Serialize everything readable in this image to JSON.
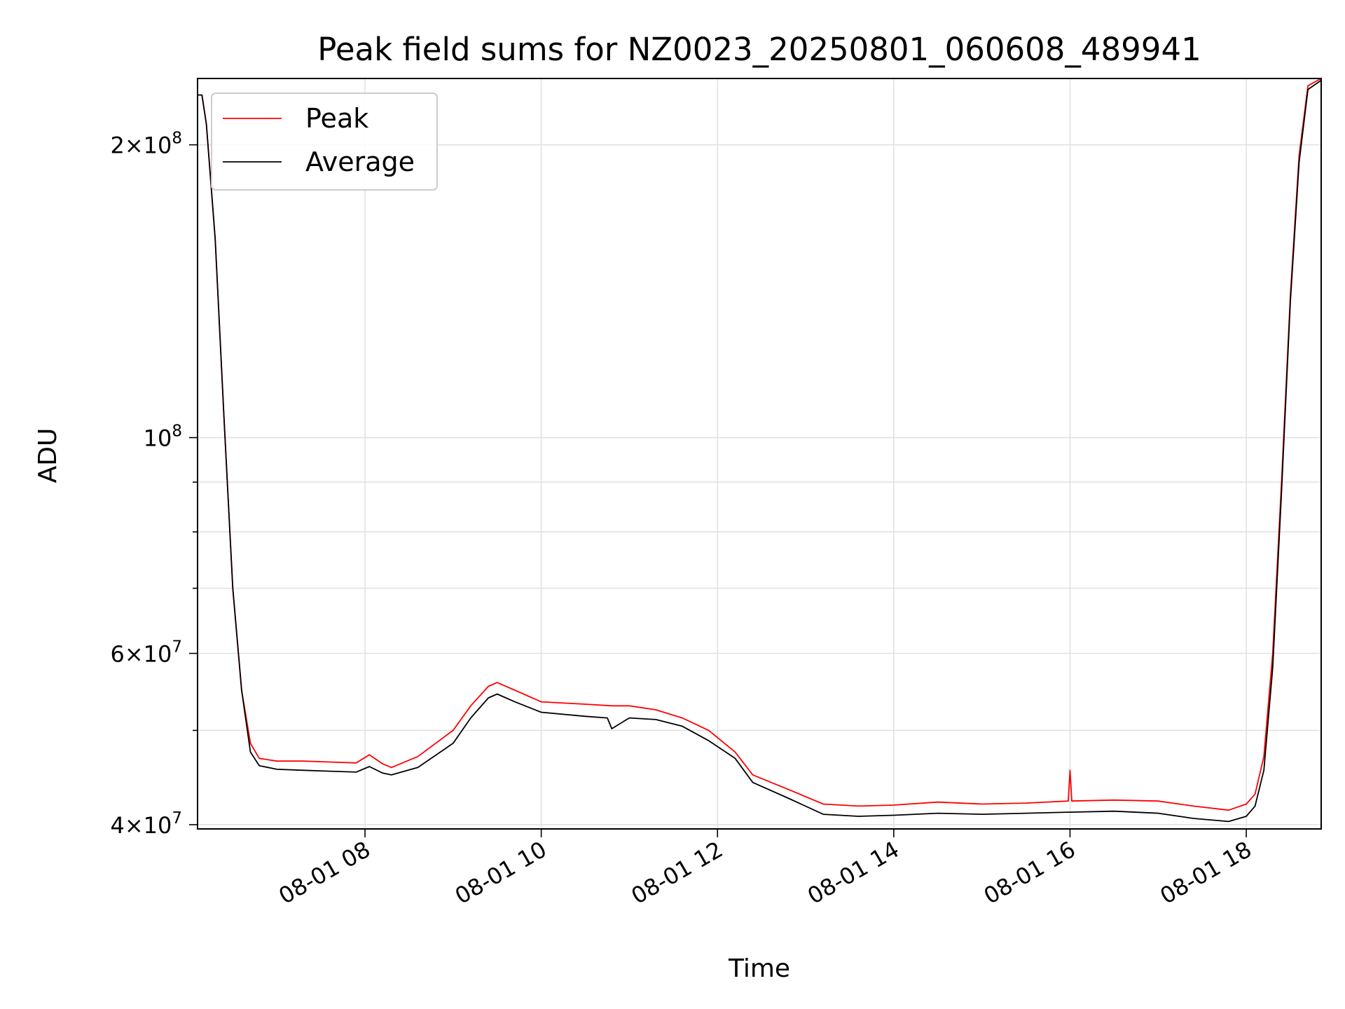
{
  "chart_data": {
    "type": "line",
    "title": "Peak field sums for NZ0023_20250801_060608_489941",
    "xlabel": "Time",
    "ylabel": "ADU",
    "yscale": "log",
    "x_unit": "hours on 2025-08-01",
    "xlim": [
      6.1,
      18.85
    ],
    "ylim": [
      39600000,
      234000000
    ],
    "grid": true,
    "legend": "upper-left",
    "x_ticks": [
      {
        "value": 8,
        "label": "08-01 08"
      },
      {
        "value": 10,
        "label": "08-01 10"
      },
      {
        "value": 12,
        "label": "08-01 12"
      },
      {
        "value": 14,
        "label": "08-01 14"
      },
      {
        "value": 16,
        "label": "08-01 16"
      },
      {
        "value": 18,
        "label": "08-01 18"
      }
    ],
    "y_ticks_major": [
      {
        "value": 40000000,
        "base": "4",
        "exp": "7"
      },
      {
        "value": 60000000,
        "base": "6",
        "exp": "7"
      },
      {
        "value": 100000000,
        "base": "10",
        "exp": "8"
      },
      {
        "value": 200000000,
        "base": "2",
        "exp": "8"
      }
    ],
    "y_ticks_minor": [
      50000000,
      70000000,
      80000000,
      90000000
    ],
    "series": [
      {
        "name": "Peak",
        "color": "#ff0000",
        "x": [
          6.1,
          6.15,
          6.2,
          6.3,
          6.4,
          6.5,
          6.6,
          6.7,
          6.8,
          7.0,
          7.3,
          7.6,
          7.9,
          8.05,
          8.2,
          8.3,
          8.6,
          9.0,
          9.2,
          9.4,
          9.5,
          9.7,
          10.0,
          10.5,
          10.8,
          11.0,
          11.3,
          11.6,
          11.9,
          12.2,
          12.4,
          12.8,
          13.2,
          13.6,
          14.0,
          14.5,
          15.0,
          15.5,
          15.98,
          16.0,
          16.02,
          16.5,
          17.0,
          17.4,
          17.8,
          18.0,
          18.1,
          18.2,
          18.3,
          18.4,
          18.5,
          18.6,
          18.7,
          18.85
        ],
        "y": [
          225000000,
          225000000,
          210000000,
          160000000,
          105000000,
          70000000,
          55000000,
          48500000,
          46800000,
          46500000,
          46500000,
          46400000,
          46300000,
          47200000,
          46200000,
          45800000,
          47000000,
          50000000,
          53000000,
          55500000,
          56000000,
          55000000,
          53500000,
          53200000,
          53000000,
          53000000,
          52500000,
          51500000,
          50000000,
          47500000,
          45000000,
          43500000,
          42000000,
          41800000,
          41900000,
          42200000,
          42000000,
          42100000,
          42300000,
          45500000,
          42300000,
          42400000,
          42300000,
          41800000,
          41400000,
          42000000,
          43000000,
          47000000,
          60000000,
          90000000,
          140000000,
          195000000,
          230000000,
          234000000
        ]
      },
      {
        "name": "Average",
        "color": "#000000",
        "x": [
          6.1,
          6.15,
          6.2,
          6.3,
          6.4,
          6.5,
          6.6,
          6.7,
          6.8,
          7.0,
          7.3,
          7.6,
          7.9,
          8.05,
          8.2,
          8.3,
          8.6,
          9.0,
          9.2,
          9.4,
          9.5,
          9.7,
          10.0,
          10.5,
          10.75,
          10.8,
          11.0,
          11.3,
          11.6,
          11.9,
          12.2,
          12.4,
          12.8,
          13.2,
          13.6,
          14.0,
          14.5,
          15.0,
          15.5,
          16.0,
          16.5,
          17.0,
          17.4,
          17.8,
          18.0,
          18.1,
          18.2,
          18.3,
          18.4,
          18.5,
          18.6,
          18.7,
          18.85
        ],
        "y": [
          225000000,
          225000000,
          210000000,
          160000000,
          105000000,
          70000000,
          55000000,
          47500000,
          46000000,
          45600000,
          45500000,
          45400000,
          45300000,
          45900000,
          45200000,
          45000000,
          45800000,
          48500000,
          51500000,
          54000000,
          54500000,
          53500000,
          52200000,
          51700000,
          51500000,
          50200000,
          51500000,
          51300000,
          50500000,
          48800000,
          46800000,
          44200000,
          42600000,
          41000000,
          40800000,
          40900000,
          41100000,
          41000000,
          41100000,
          41200000,
          41300000,
          41100000,
          40600000,
          40300000,
          40800000,
          41800000,
          45500000,
          58000000,
          88000000,
          138000000,
          192000000,
          228000000,
          233000000
        ]
      }
    ]
  }
}
